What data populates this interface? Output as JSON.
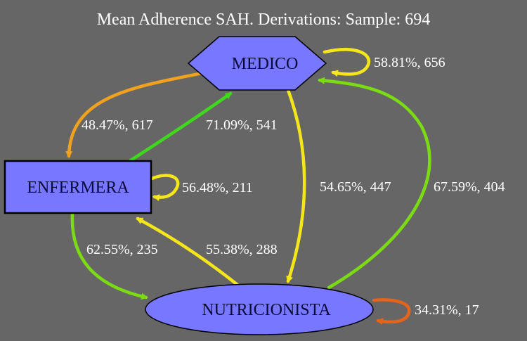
{
  "title": "Mean Adherence SAH. Derivations: Sample: 694",
  "colors": {
    "background": "#666666",
    "node_fill": "#7777ff",
    "node_stroke": "#000000",
    "yellow": "#f5e61c",
    "orange": "#f0a21e",
    "green": "#40d81c",
    "lime": "#7bdc14",
    "dark_orange": "#e8631a"
  },
  "nodes": {
    "medico": {
      "label": "MEDICO",
      "shape": "hexagon"
    },
    "enfermera": {
      "label": "ENFERMERA",
      "shape": "rectangle"
    },
    "nutricionista": {
      "label": "NUTRICIONISTA",
      "shape": "ellipse"
    }
  },
  "edges": {
    "medico_self": {
      "label": "58.81%, 656",
      "color": "yellow"
    },
    "medico_enfermera": {
      "label": "48.47%, 617",
      "color": "orange"
    },
    "enfermera_medico": {
      "label": "71.09%, 541",
      "color": "green"
    },
    "medico_nutricionista": {
      "label": "54.65%, 447",
      "color": "yellow"
    },
    "nutricionista_medico": {
      "label": "67.59%, 404",
      "color": "lime"
    },
    "enfermera_self": {
      "label": "56.48%, 211",
      "color": "yellow"
    },
    "enfermera_nutricionista": {
      "label": "62.55%, 235",
      "color": "lime"
    },
    "nutricionista_enfermera": {
      "label": "55.38%, 288",
      "color": "yellow"
    },
    "nutricionista_self": {
      "label": "34.31%, 17",
      "color": "dark_orange"
    }
  }
}
